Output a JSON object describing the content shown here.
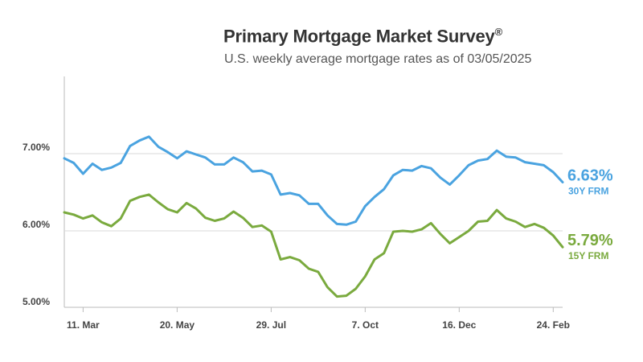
{
  "header": {
    "title": "Primary Mortgage Market Survey",
    "title_mark": "®",
    "subtitle": "U.S. weekly average mortgage rates as of 03/05/2025"
  },
  "colors": {
    "series_30y": "#4aa3e0",
    "series_15y": "#7aaa3e",
    "grid": "#d9d9d9",
    "axis": "#bbbbbb"
  },
  "chart_data": {
    "type": "line",
    "title": "Primary Mortgage Market Survey®",
    "subtitle": "U.S. weekly average mortgage rates as of 03/05/2025",
    "y_ticks": [
      "5.00%",
      "6.00%",
      "7.00%"
    ],
    "ylim": [
      5.0,
      7.0
    ],
    "x_ticks": [
      "11. Mar",
      "20. May",
      "29. Jul",
      "7. Oct",
      "16. Dec",
      "24. Feb"
    ],
    "grid": true,
    "series": [
      {
        "name": "30Y FRM",
        "end_label": "6.63%",
        "values": [
          6.94,
          6.88,
          6.74,
          6.87,
          6.79,
          6.82,
          6.88,
          7.1,
          7.17,
          7.22,
          7.09,
          7.02,
          6.94,
          7.03,
          6.99,
          6.95,
          6.86,
          6.86,
          6.95,
          6.89,
          6.77,
          6.78,
          6.73,
          6.47,
          6.49,
          6.46,
          6.35,
          6.35,
          6.2,
          6.09,
          6.08,
          6.12,
          6.32,
          6.44,
          6.54,
          6.72,
          6.79,
          6.78,
          6.84,
          6.81,
          6.69,
          6.6,
          6.72,
          6.85,
          6.91,
          6.93,
          7.04,
          6.96,
          6.95,
          6.89,
          6.87,
          6.85,
          6.76,
          6.63
        ]
      },
      {
        "name": "15Y FRM",
        "end_label": "5.79%",
        "values": [
          6.24,
          6.21,
          6.16,
          6.2,
          6.11,
          6.06,
          6.16,
          6.39,
          6.44,
          6.47,
          6.37,
          6.28,
          6.24,
          6.36,
          6.29,
          6.17,
          6.13,
          6.16,
          6.25,
          6.17,
          6.05,
          6.07,
          5.99,
          5.63,
          5.66,
          5.62,
          5.51,
          5.47,
          5.27,
          5.15,
          5.16,
          5.25,
          5.41,
          5.63,
          5.71,
          5.99,
          6.0,
          5.99,
          6.02,
          6.1,
          5.96,
          5.84,
          5.92,
          6.0,
          6.12,
          6.13,
          6.27,
          6.16,
          6.12,
          6.05,
          6.09,
          6.04,
          5.94,
          5.79
        ]
      }
    ]
  }
}
